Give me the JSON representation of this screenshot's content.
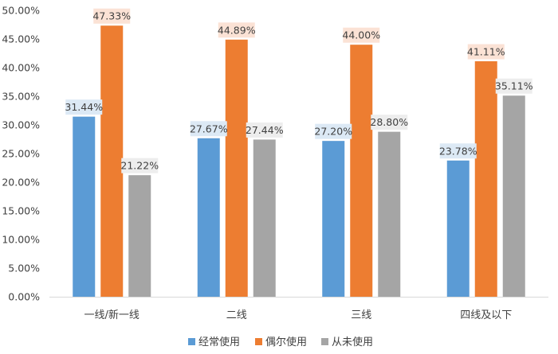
{
  "chart_data": {
    "type": "bar",
    "categories": [
      "一线/新一线",
      "二线",
      "三线",
      "四线及以下"
    ],
    "series": [
      {
        "name": "经常使用",
        "values": [
          31.44,
          27.67,
          27.2,
          23.78
        ],
        "labels": [
          "31.44%",
          "27.67%",
          "27.20%",
          "23.78%"
        ],
        "color": "#5b9bd5",
        "label_bg": "#dce9f5"
      },
      {
        "name": "偶尔使用",
        "values": [
          47.33,
          44.89,
          44.0,
          41.11
        ],
        "labels": [
          "47.33%",
          "44.89%",
          "44.00%",
          "41.11%"
        ],
        "color": "#ed7d31",
        "label_bg": "#fbe2d5"
      },
      {
        "name": "从未使用",
        "values": [
          21.22,
          27.44,
          28.8,
          35.11
        ],
        "labels": [
          "21.22%",
          "27.44%",
          "28.80%",
          "35.11%"
        ],
        "color": "#a5a5a5",
        "label_bg": "#ededed"
      }
    ],
    "yticks": [
      "0.00%",
      "5.00%",
      "10.00%",
      "15.00%",
      "20.00%",
      "25.00%",
      "30.00%",
      "35.00%",
      "40.00%",
      "45.00%",
      "50.00%"
    ],
    "ylim": [
      0,
      50
    ],
    "grid": false,
    "legend": "bottom"
  }
}
